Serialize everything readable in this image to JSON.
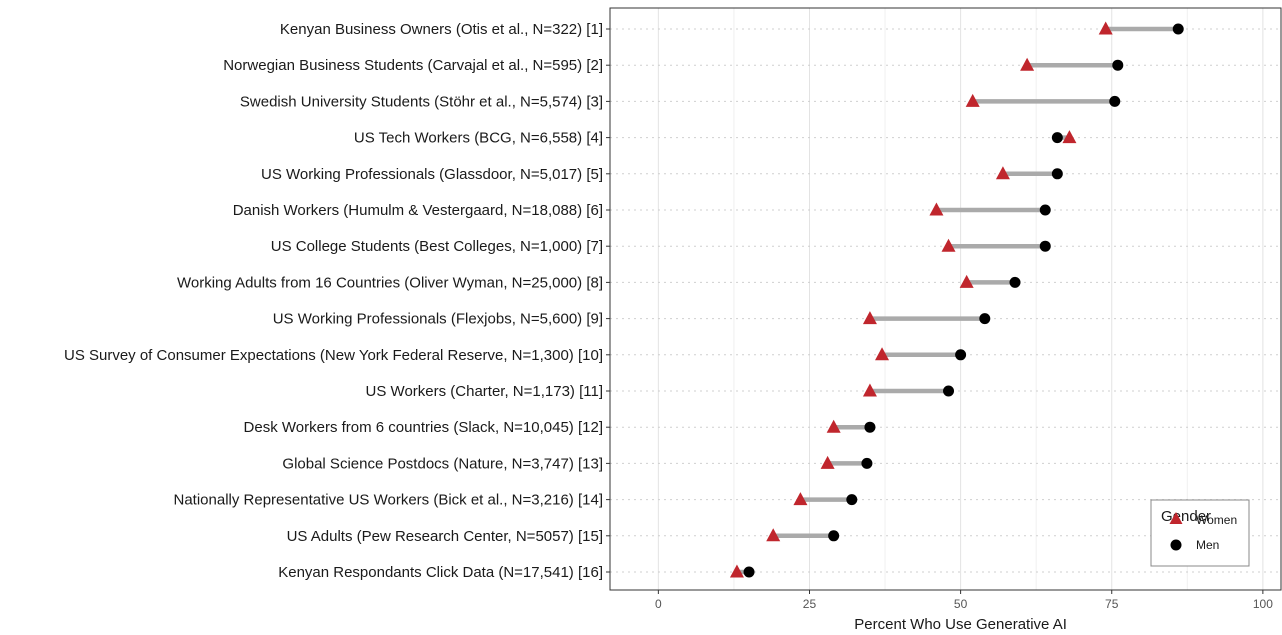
{
  "chart_data": {
    "type": "dumbbell",
    "xlabel": "Percent Who Use Generative AI",
    "xlim": [
      -8,
      103
    ],
    "xticks": [
      0,
      25,
      50,
      75,
      100
    ],
    "grid": true,
    "legend": {
      "title": "Gender",
      "placement": "bottom-right",
      "items": [
        "Women",
        "Men"
      ]
    },
    "colors": {
      "women": "#c0262d",
      "men": "#000000",
      "connector": "#aaaaaa"
    },
    "series": [
      {
        "name": "Women",
        "marker": "triangle",
        "values": [
          74,
          61,
          52,
          68,
          57,
          46,
          48,
          51,
          35,
          37,
          35,
          29,
          28,
          23.5,
          19,
          13
        ]
      },
      {
        "name": "Men",
        "marker": "circle",
        "values": [
          86,
          76,
          75.5,
          66,
          66,
          64,
          64,
          59,
          54,
          50,
          48,
          35,
          34.5,
          32,
          29,
          15
        ]
      }
    ],
    "categories": [
      "Kenyan Business Owners (Otis et al., N=322) [1]",
      "Norwegian Business Students (Carvajal et al., N=595) [2]",
      "Swedish University Students (Stöhr et al., N=5,574)  [3]",
      "US Tech Workers (BCG, N=6,558) [4]",
      "US Working Professionals (Glassdoor, N=5,017) [5]",
      "Danish Workers (Humulm & Vestergaard, N=18,088) [6]",
      "US College Students (Best Colleges, N=1,000) [7]",
      "Working Adults from 16 Countries (Oliver Wyman, N=25,000) [8]",
      "US Working Professionals (Flexjobs, N=5,600) [9]",
      "US Survey of Consumer Expectations (New York Federal Reserve, N=1,300) [10]",
      "US Workers (Charter, N=1,173) [11]",
      "Desk Workers from 6 countries (Slack, N=10,045)  [12]",
      "Global Science Postdocs (Nature, N=3,747) [13]",
      "Nationally Representative US Workers (Bick et al., N=3,216) [14]",
      "US Adults (Pew Research Center, N=5057) [15]",
      "Kenyan Respondants Click Data (N=17,541) [16]"
    ]
  }
}
